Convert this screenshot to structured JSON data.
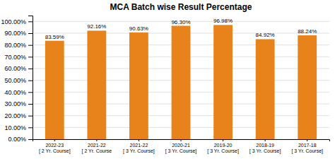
{
  "chart_data": {
    "type": "bar",
    "title": "MCA Batch wise Result Percentage",
    "categories": [
      "2022-23\n[ 2 Yr. Course]",
      "2021-22\n[ 2 Yr. Course",
      "2021-22\n[ 3 Yr. Course]",
      "2020-21\n[ 3 Yr. Course]",
      "2019-20\n[ 3 Yr. Course]",
      "2018-19\n[ 3 Yr. Course]",
      "2017-18\n[ 3 Yr. Course]"
    ],
    "values": [
      83.59,
      92.16,
      90.63,
      96.3,
      96.98,
      84.92,
      88.24
    ],
    "value_labels": [
      "83.59%",
      "92.16%",
      "90.63%",
      "96.30%",
      "96.98%",
      "84.92%",
      "88.24%"
    ],
    "data_labels": true,
    "color": "#E8821A",
    "ylim": [
      0,
      105
    ],
    "yticks": [
      {
        "value": 0,
        "label": "0.00%"
      },
      {
        "value": 10,
        "label": "10.00%"
      },
      {
        "value": 20,
        "label": "20.00%"
      },
      {
        "value": 30,
        "label": "30.00%"
      },
      {
        "value": 40,
        "label": "40.00%"
      },
      {
        "value": 50,
        "label": "50.00%"
      },
      {
        "value": 60,
        "label": "60.00%"
      },
      {
        "value": 70,
        "label": "70.00%"
      },
      {
        "value": 80,
        "label": "80.00%"
      },
      {
        "value": 90,
        "label": "90.00%"
      },
      {
        "value": 100,
        "label": "100.00%"
      }
    ],
    "grid": true
  }
}
